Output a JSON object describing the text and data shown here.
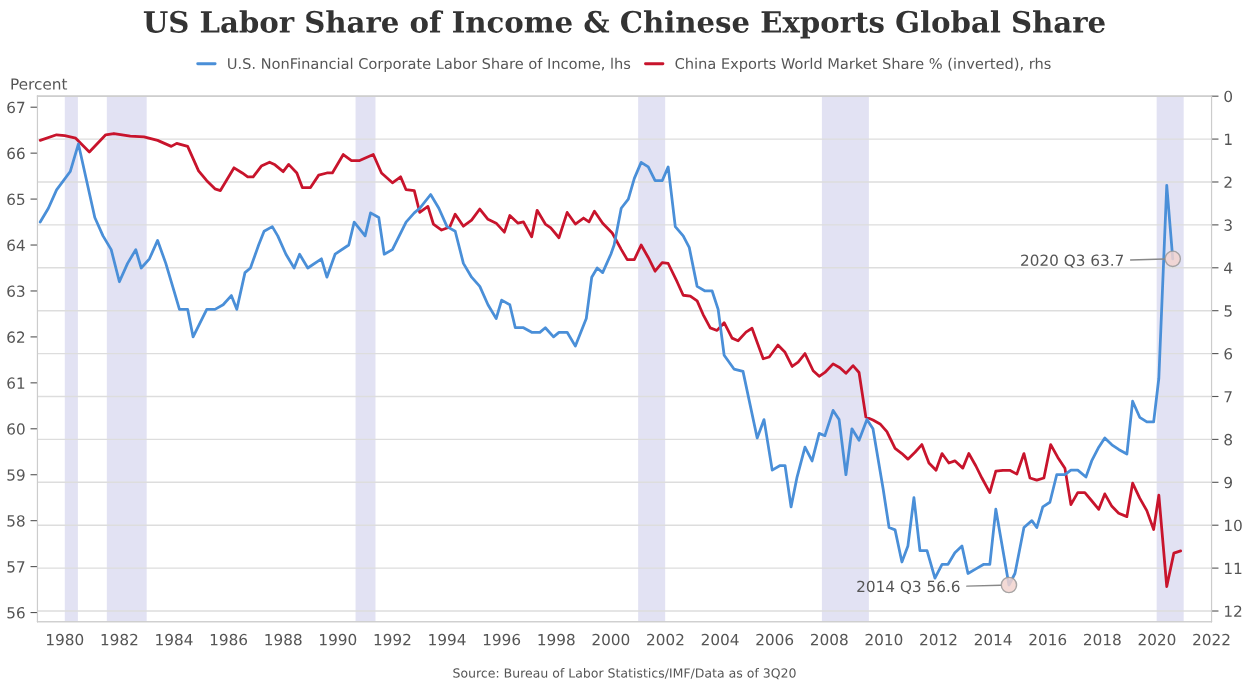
{
  "chart_data": {
    "type": "line",
    "title": "US Labor Share of Income & Chinese Exports Global Share",
    "ylabel": "Percent",
    "xlim": [
      1979.0,
      2022
    ],
    "xticks": [
      1980,
      1982,
      1984,
      1986,
      1988,
      1990,
      1992,
      1994,
      1996,
      1998,
      2000,
      2002,
      2004,
      2006,
      2008,
      2010,
      2012,
      2014,
      2016,
      2018,
      2020,
      2022
    ],
    "ylim": [
      55.8,
      67.24
    ],
    "yticks": [
      56,
      57,
      58,
      59,
      60,
      61,
      62,
      63,
      64,
      65,
      66,
      67
    ],
    "y2lim": [
      12.25,
      0
    ],
    "y2ticks": [
      0,
      1,
      2,
      3,
      4,
      5,
      6,
      7,
      8,
      9,
      10,
      11,
      12
    ],
    "grid": "y2",
    "legend": "top",
    "marker": "none",
    "line_style": "solid",
    "series": [
      {
        "name": "U.S. NonFinancial Corporate Labor Share of Income, lhs",
        "color": "#4a8fd8",
        "x": [
          1979.1,
          1979.4,
          1979.7,
          1980.2,
          1980.5,
          1980.8,
          1981.1,
          1981.4,
          1981.7,
          1982.0,
          1982.3,
          1982.6,
          1982.8,
          1983.1,
          1983.4,
          1983.7,
          1984.0,
          1984.2,
          1984.5,
          1984.7,
          1985.2,
          1985.5,
          1985.8,
          1986.1,
          1986.3,
          1986.6,
          1986.8,
          1987.1,
          1987.3,
          1987.6,
          1987.8,
          1988.1,
          1988.4,
          1988.6,
          1988.9,
          1989.4,
          1989.6,
          1989.9,
          1990.4,
          1990.6,
          1991.0,
          1991.2,
          1991.5,
          1991.7,
          1992.0,
          1992.5,
          1992.8,
          1993.0,
          1993.4,
          1993.7,
          1994.0,
          1994.3,
          1994.6,
          1994.9,
          1995.2,
          1995.5,
          1995.8,
          1996.0,
          1996.3,
          1996.5,
          1996.8,
          1997.1,
          1997.4,
          1997.6,
          1997.9,
          1998.1,
          1998.4,
          1998.7,
          1999.1,
          1999.3,
          1999.5,
          1999.7,
          2000.0,
          2000.12,
          2000.38,
          2000.64,
          2000.86,
          2001.11,
          2001.37,
          2001.62,
          2001.88,
          2002.1,
          2002.36,
          2002.65,
          2002.87,
          2003.16,
          2003.45,
          2003.71,
          2003.93,
          2004.15,
          2004.51,
          2004.84,
          2005.36,
          2005.61,
          2005.91,
          2006.2,
          2006.38,
          2006.6,
          2006.82,
          2007.11,
          2007.37,
          2007.63,
          2007.84,
          2008.14,
          2008.36,
          2008.61,
          2008.83,
          2009.09,
          2009.38,
          2009.6,
          2009.97,
          2010.19,
          2010.41,
          2010.66,
          2010.88,
          2011.1,
          2011.32,
          2011.58,
          2011.87,
          2012.13,
          2012.35,
          2012.6,
          2012.86,
          2013.08,
          2013.37,
          2013.66,
          2013.88,
          2014.1,
          2014.58,
          2014.8,
          2015.13,
          2015.42,
          2015.6,
          2015.82,
          2016.08,
          2016.33,
          2016.63,
          2016.85,
          2017.1,
          2017.4,
          2017.61,
          2017.87,
          2018.09,
          2018.35,
          2018.6,
          2018.9,
          2019.11,
          2019.37,
          2019.63,
          2019.88,
          2020.07,
          2020.36,
          2020.58
        ],
        "values": [
          64.5,
          64.8,
          65.2,
          65.6,
          66.2,
          65.4,
          64.6,
          64.2,
          63.9,
          63.2,
          63.6,
          63.9,
          63.5,
          63.7,
          64.1,
          63.6,
          63.0,
          62.6,
          62.6,
          62.0,
          62.6,
          62.6,
          62.7,
          62.9,
          62.6,
          63.4,
          63.5,
          64.0,
          64.3,
          64.4,
          64.2,
          63.8,
          63.5,
          63.8,
          63.5,
          63.7,
          63.3,
          63.8,
          64.0,
          64.5,
          64.2,
          64.7,
          64.6,
          63.8,
          63.9,
          64.5,
          64.7,
          64.8,
          65.1,
          64.8,
          64.4,
          64.3,
          63.6,
          63.3,
          63.1,
          62.7,
          62.4,
          62.8,
          62.7,
          62.2,
          62.2,
          62.1,
          62.1,
          62.2,
          62.0,
          62.1,
          62.1,
          61.8,
          62.4,
          63.3,
          63.5,
          63.4,
          63.8,
          64.0,
          64.8,
          65.0,
          65.45,
          65.8,
          65.7,
          65.4,
          65.4,
          65.7,
          64.4,
          64.2,
          63.95,
          63.1,
          63.0,
          63.0,
          62.6,
          61.6,
          61.3,
          61.25,
          59.8,
          60.2,
          59.1,
          59.2,
          59.2,
          58.3,
          58.95,
          59.6,
          59.3,
          59.9,
          59.85,
          60.4,
          60.2,
          59.0,
          60.0,
          59.75,
          60.2,
          60.0,
          58.7,
          57.85,
          57.8,
          57.1,
          57.45,
          58.5,
          57.35,
          57.35,
          56.75,
          57.05,
          57.05,
          57.3,
          57.45,
          56.85,
          56.95,
          57.05,
          57.05,
          58.25,
          56.6,
          56.85,
          57.85,
          58.0,
          57.85,
          58.3,
          58.4,
          59.0,
          59.0,
          59.1,
          59.1,
          58.95,
          59.3,
          59.6,
          59.8,
          59.65,
          59.55,
          59.45,
          60.6,
          60.25,
          60.15,
          60.15,
          61.1,
          65.3,
          63.7
        ]
      },
      {
        "name": "China Exports World Market Share % (inverted), rhs",
        "color": "#c8142c",
        "axis": "y2",
        "x": [
          1979.1,
          1979.7,
          1980.0,
          1980.4,
          1980.9,
          1981.5,
          1981.8,
          1982.4,
          1982.9,
          1983.4,
          1983.9,
          1984.1,
          1984.5,
          1984.9,
          1985.2,
          1985.5,
          1985.7,
          1986.2,
          1986.5,
          1986.7,
          1986.9,
          1987.2,
          1987.5,
          1987.7,
          1988.0,
          1988.2,
          1988.5,
          1988.7,
          1989.0,
          1989.3,
          1989.6,
          1989.8,
          1990.2,
          1990.5,
          1990.8,
          1991.3,
          1991.6,
          1992.0,
          1992.3,
          1992.5,
          1992.8,
          1993.0,
          1993.3,
          1993.5,
          1993.8,
          1994.1,
          1994.3,
          1994.6,
          1994.9,
          1995.2,
          1995.5,
          1995.8,
          1996.1,
          1996.3,
          1996.6,
          1996.8,
          1997.1,
          1997.3,
          1997.6,
          1997.8,
          1998.1,
          1998.4,
          1998.7,
          1999.0,
          1999.2,
          1999.4,
          1999.7,
          2000.05,
          2000.38,
          2000.6,
          2000.86,
          2001.11,
          2001.37,
          2001.62,
          2001.88,
          2002.1,
          2002.43,
          2002.65,
          2002.91,
          2003.16,
          2003.38,
          2003.64,
          2003.89,
          2004.15,
          2004.44,
          2004.66,
          2004.95,
          2005.17,
          2005.58,
          2005.8,
          2006.12,
          2006.38,
          2006.64,
          2006.86,
          2007.11,
          2007.41,
          2007.63,
          2007.84,
          2008.14,
          2008.39,
          2008.61,
          2008.87,
          2009.09,
          2009.34,
          2009.6,
          2009.86,
          2010.11,
          2010.41,
          2010.66,
          2010.88,
          2011.14,
          2011.39,
          2011.65,
          2011.91,
          2012.13,
          2012.38,
          2012.6,
          2012.89,
          2013.11,
          2013.37,
          2013.59,
          2013.88,
          2014.1,
          2014.36,
          2014.61,
          2014.87,
          2015.13,
          2015.35,
          2015.6,
          2015.86,
          2016.11,
          2016.37,
          2016.63,
          2016.85,
          2017.1,
          2017.36,
          2017.61,
          2017.87,
          2018.09,
          2018.35,
          2018.6,
          2018.9,
          2019.11,
          2019.37,
          2019.63,
          2019.88,
          2020.07,
          2020.36,
          2020.62,
          2020.87
        ],
        "values": [
          1.03,
          0.9,
          0.92,
          0.98,
          1.3,
          0.9,
          0.87,
          0.93,
          0.95,
          1.03,
          1.17,
          1.1,
          1.17,
          1.74,
          1.97,
          2.16,
          2.2,
          1.67,
          1.79,
          1.88,
          1.88,
          1.63,
          1.54,
          1.6,
          1.76,
          1.59,
          1.79,
          2.13,
          2.13,
          1.84,
          1.79,
          1.79,
          1.36,
          1.5,
          1.5,
          1.36,
          1.79,
          2.02,
          1.88,
          2.18,
          2.2,
          2.71,
          2.57,
          2.98,
          3.12,
          3.05,
          2.75,
          3.03,
          2.89,
          2.63,
          2.87,
          2.96,
          3.17,
          2.78,
          2.96,
          2.93,
          3.28,
          2.66,
          2.98,
          3.07,
          3.3,
          2.71,
          2.98,
          2.84,
          2.93,
          2.68,
          2.96,
          3.19,
          3.57,
          3.81,
          3.81,
          3.47,
          3.76,
          4.08,
          3.88,
          3.9,
          4.33,
          4.64,
          4.66,
          4.77,
          5.09,
          5.4,
          5.46,
          5.28,
          5.64,
          5.7,
          5.5,
          5.41,
          6.12,
          6.08,
          5.8,
          5.97,
          6.3,
          6.2,
          6.0,
          6.4,
          6.53,
          6.44,
          6.24,
          6.33,
          6.46,
          6.28,
          6.44,
          7.48,
          7.55,
          7.64,
          7.82,
          8.21,
          8.33,
          8.46,
          8.3,
          8.12,
          8.55,
          8.72,
          8.33,
          8.55,
          8.5,
          8.67,
          8.33,
          8.62,
          8.9,
          9.24,
          8.74,
          8.72,
          8.72,
          8.81,
          8.33,
          8.9,
          8.95,
          8.9,
          8.12,
          8.42,
          8.67,
          9.52,
          9.24,
          9.24,
          9.43,
          9.63,
          9.27,
          9.56,
          9.72,
          9.8,
          9.02,
          9.37,
          9.66,
          10.1,
          9.3,
          11.43,
          10.65,
          10.6
        ]
      }
    ],
    "bands": [
      {
        "axis": "x",
        "from": 1980.0,
        "to": 1980.48,
        "color": "#e2e2f3"
      },
      {
        "axis": "x",
        "from": 1981.54,
        "to": 1983.0,
        "color": "#e2e2f3"
      },
      {
        "axis": "x",
        "from": 1990.65,
        "to": 1991.38,
        "color": "#e2e2f3"
      },
      {
        "axis": "x",
        "from": 2001.0,
        "to": 2001.99,
        "color": "#e2e2f3"
      },
      {
        "axis": "x",
        "from": 2007.73,
        "to": 2009.45,
        "color": "#e2e2f3"
      },
      {
        "axis": "x",
        "from": 2019.99,
        "to": 2020.98,
        "color": "#e2e2f3"
      }
    ],
    "annotations": [
      {
        "text": "2020 Q3 63.7",
        "x": 2020.58,
        "y": 63.7
      },
      {
        "text": "2014 Q3 56.6",
        "x": 2014.58,
        "y": 56.6
      },
      "Source: Bureau of Labor Statistics/IMF/Data as of 3Q20"
    ]
  }
}
